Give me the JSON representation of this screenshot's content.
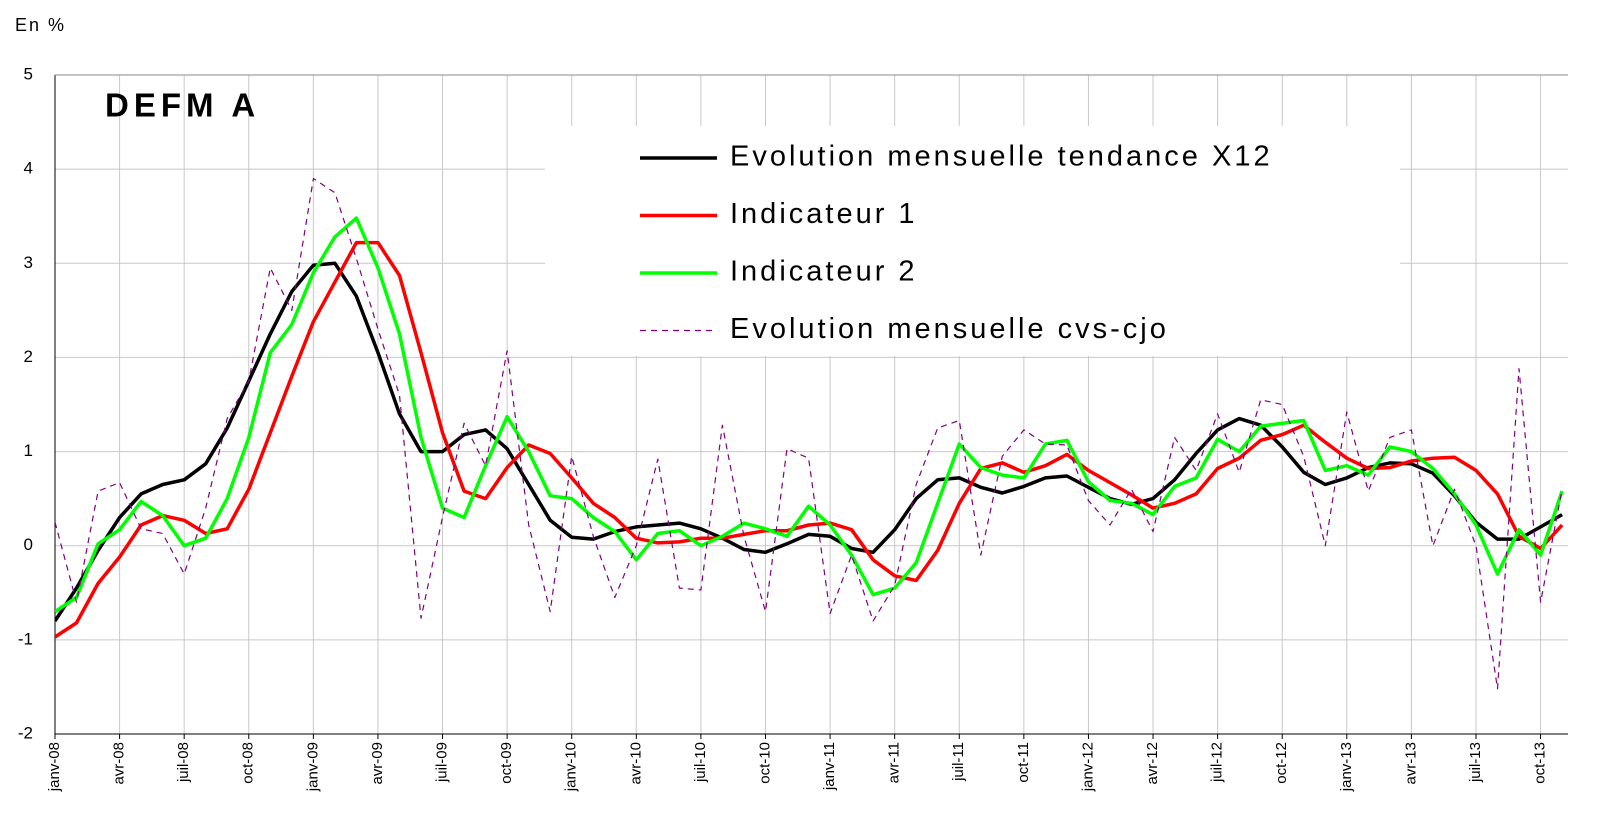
{
  "chart_data": {
    "type": "line",
    "title": "DEFM A",
    "y_label": "En %",
    "categories": [
      "janv-08",
      null,
      null,
      "avr-08",
      null,
      null,
      "juil-08",
      null,
      null,
      "oct-08",
      null,
      null,
      "janv-09",
      null,
      null,
      "avr-09",
      null,
      null,
      "juil-09",
      null,
      null,
      "oct-09",
      null,
      null,
      "janv-10",
      null,
      null,
      "avr-10",
      null,
      null,
      "juil-10",
      null,
      null,
      "oct-10",
      null,
      null,
      "janv-11",
      null,
      null,
      "avr-11",
      null,
      null,
      "juil-11",
      null,
      null,
      "oct-11",
      null,
      null,
      "janv-12",
      null,
      null,
      "avr-12",
      null,
      null,
      "juil-12",
      null,
      null,
      "oct-12",
      null,
      null,
      "janv-13",
      null,
      null,
      "avr-13",
      null,
      null,
      "juil-13",
      null,
      null,
      "oct-13",
      null
    ],
    "series": [
      {
        "name": "Evolution mensuelle tendance X12",
        "color": "#000000",
        "dashed": false,
        "values": [
          -0.8,
          -0.45,
          -0.05,
          0.3,
          0.55,
          0.65,
          0.7,
          0.87,
          1.25,
          1.75,
          2.25,
          2.7,
          2.98,
          3.0,
          2.65,
          2.05,
          1.4,
          1.0,
          1.0,
          1.18,
          1.23,
          1.03,
          0.65,
          0.27,
          0.09,
          0.07,
          0.15,
          0.2,
          0.22,
          0.24,
          0.18,
          0.08,
          -0.04,
          -0.07,
          0.02,
          0.12,
          0.1,
          -0.03,
          -0.07,
          0.17,
          0.5,
          0.7,
          0.72,
          0.62,
          0.56,
          0.63,
          0.72,
          0.74,
          0.62,
          0.5,
          0.44,
          0.5,
          0.7,
          0.98,
          1.23,
          1.35,
          1.28,
          1.05,
          0.78,
          0.65,
          0.72,
          0.83,
          0.88,
          0.87,
          0.77,
          0.53,
          0.25,
          0.07,
          0.07,
          0.2,
          0.33
        ]
      },
      {
        "name": "Indicateur 1",
        "color": "#ff0000",
        "dashed": false,
        "values": [
          -0.97,
          -0.82,
          -0.4,
          -0.12,
          0.22,
          0.32,
          0.27,
          0.13,
          0.18,
          0.6,
          1.2,
          1.8,
          2.38,
          2.8,
          3.22,
          3.22,
          2.87,
          2.05,
          1.2,
          0.58,
          0.5,
          0.83,
          1.07,
          0.98,
          0.72,
          0.45,
          0.3,
          0.08,
          0.03,
          0.04,
          0.08,
          0.08,
          0.12,
          0.16,
          0.16,
          0.22,
          0.24,
          0.17,
          -0.15,
          -0.32,
          -0.37,
          -0.05,
          0.45,
          0.82,
          0.88,
          0.78,
          0.85,
          0.97,
          0.8,
          0.67,
          0.54,
          0.4,
          0.45,
          0.55,
          0.82,
          0.93,
          1.12,
          1.18,
          1.28,
          1.1,
          0.93,
          0.82,
          0.83,
          0.9,
          0.93,
          0.94,
          0.8,
          0.55,
          0.1,
          -0.03,
          0.22
        ]
      },
      {
        "name": "Indicateur 2",
        "color": "#00ff00",
        "dashed": false,
        "values": [
          -0.7,
          -0.55,
          0.02,
          0.17,
          0.47,
          0.32,
          0.0,
          0.08,
          0.5,
          1.15,
          2.05,
          2.35,
          2.9,
          3.28,
          3.48,
          2.95,
          2.25,
          1.15,
          0.4,
          0.3,
          0.85,
          1.37,
          1.0,
          0.53,
          0.5,
          0.3,
          0.15,
          -0.15,
          0.13,
          0.16,
          0.0,
          0.1,
          0.24,
          0.18,
          0.1,
          0.42,
          0.22,
          -0.1,
          -0.52,
          -0.45,
          -0.18,
          0.45,
          1.08,
          0.83,
          0.75,
          0.72,
          1.08,
          1.12,
          0.68,
          0.48,
          0.45,
          0.33,
          0.63,
          0.72,
          1.13,
          1.0,
          1.27,
          1.3,
          1.33,
          0.8,
          0.85,
          0.75,
          1.05,
          1.0,
          0.82,
          0.55,
          0.22,
          -0.3,
          0.17,
          -0.1,
          0.58
        ]
      },
      {
        "name": "Evolution mensuelle cvs-cjo",
        "color": "#800080",
        "dashed": true,
        "values": [
          0.25,
          -0.6,
          0.58,
          0.67,
          0.18,
          0.13,
          -0.3,
          0.4,
          1.35,
          1.75,
          2.95,
          2.5,
          3.9,
          3.75,
          3.05,
          2.3,
          1.6,
          -0.77,
          0.3,
          1.3,
          0.85,
          2.07,
          0.22,
          -0.7,
          0.95,
          0.1,
          -0.55,
          0.0,
          0.92,
          -0.45,
          -0.47,
          1.28,
          0.1,
          -0.7,
          1.03,
          0.93,
          -0.72,
          -0.1,
          -0.8,
          -0.42,
          0.65,
          1.25,
          1.33,
          -0.1,
          0.95,
          1.23,
          1.08,
          1.07,
          0.48,
          0.22,
          0.6,
          0.15,
          1.15,
          0.8,
          1.4,
          0.78,
          1.55,
          1.5,
          0.95,
          0.0,
          1.42,
          0.58,
          1.15,
          1.23,
          0.0,
          0.6,
          0.0,
          -1.52,
          1.88,
          -0.6,
          0.6
        ]
      }
    ],
    "ylim": [
      -2,
      5
    ],
    "yticks": [
      -2,
      -1,
      0,
      1,
      2,
      3,
      4,
      5
    ],
    "grid": true
  }
}
